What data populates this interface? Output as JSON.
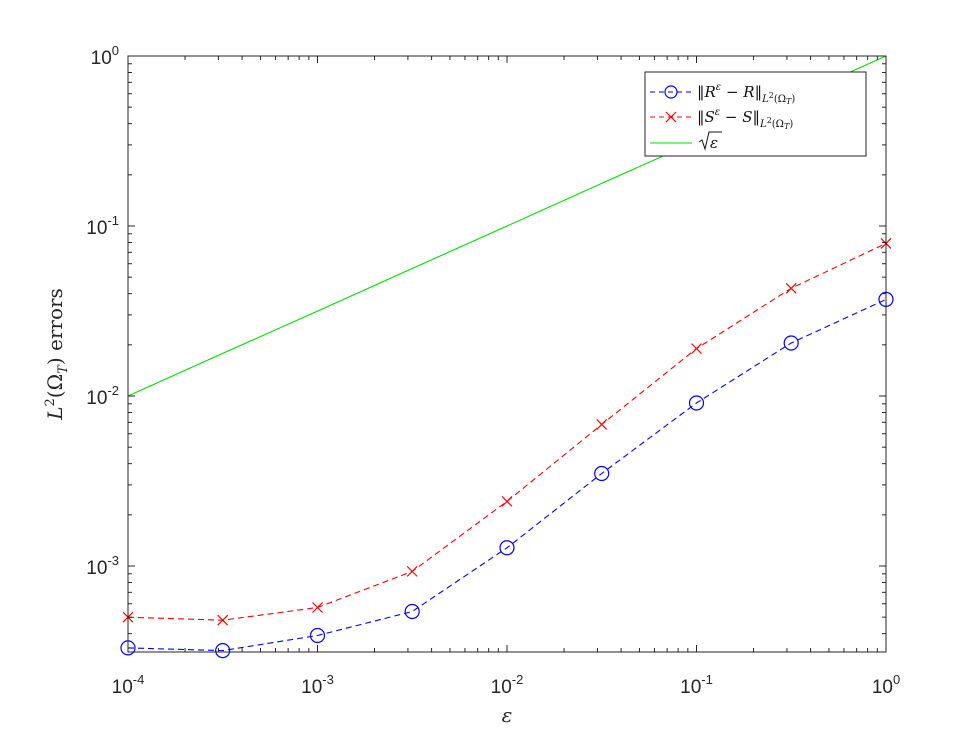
{
  "chart_data": {
    "type": "line",
    "x_scale": "log",
    "y_scale": "log",
    "xlim": [
      0.0001,
      1
    ],
    "ylim": [
      0.000312,
      1
    ],
    "x_ticks": [
      {
        "base": "10",
        "exp": "-4",
        "value": 0.0001
      },
      {
        "base": "10",
        "exp": "-3",
        "value": 0.001
      },
      {
        "base": "10",
        "exp": "-2",
        "value": 0.01
      },
      {
        "base": "10",
        "exp": "-1",
        "value": 0.1
      },
      {
        "base": "10",
        "exp": "0",
        "value": 1
      }
    ],
    "y_ticks": [
      {
        "base": "10",
        "exp": "-3",
        "value": 0.001
      },
      {
        "base": "10",
        "exp": "-2",
        "value": 0.01
      },
      {
        "base": "10",
        "exp": "-1",
        "value": 0.1
      },
      {
        "base": "10",
        "exp": "0",
        "value": 1
      }
    ],
    "xlabel": "ε",
    "ylabel": "L²(Ω_T) errors",
    "legend_position": "top-right",
    "x": [
      0.0001,
      0.000316,
      0.001,
      0.00316,
      0.01,
      0.0316,
      0.1,
      0.316,
      1
    ],
    "series": [
      {
        "name": "‖R^ε − R‖_{L²(Ω_T)}",
        "color": "#0000ff",
        "line_style": "dashed",
        "marker": "circle",
        "values": [
          0.00033,
          0.000318,
          0.00039,
          0.00054,
          0.00128,
          0.0035,
          0.0091,
          0.0205,
          0.037
        ]
      },
      {
        "name": "‖S^ε − S‖_{L²(Ω_T)}",
        "color": "#ff0000",
        "line_style": "dashed",
        "marker": "x",
        "values": [
          0.0005,
          0.00048,
          0.00057,
          0.00093,
          0.0024,
          0.0068,
          0.019,
          0.043,
          0.079
        ]
      },
      {
        "name": "√ε",
        "color": "#00dd00",
        "line_style": "solid",
        "marker": "none",
        "values": [
          0.01,
          0.0178,
          0.0316,
          0.0562,
          0.1,
          0.178,
          0.316,
          0.562,
          1
        ]
      }
    ]
  }
}
